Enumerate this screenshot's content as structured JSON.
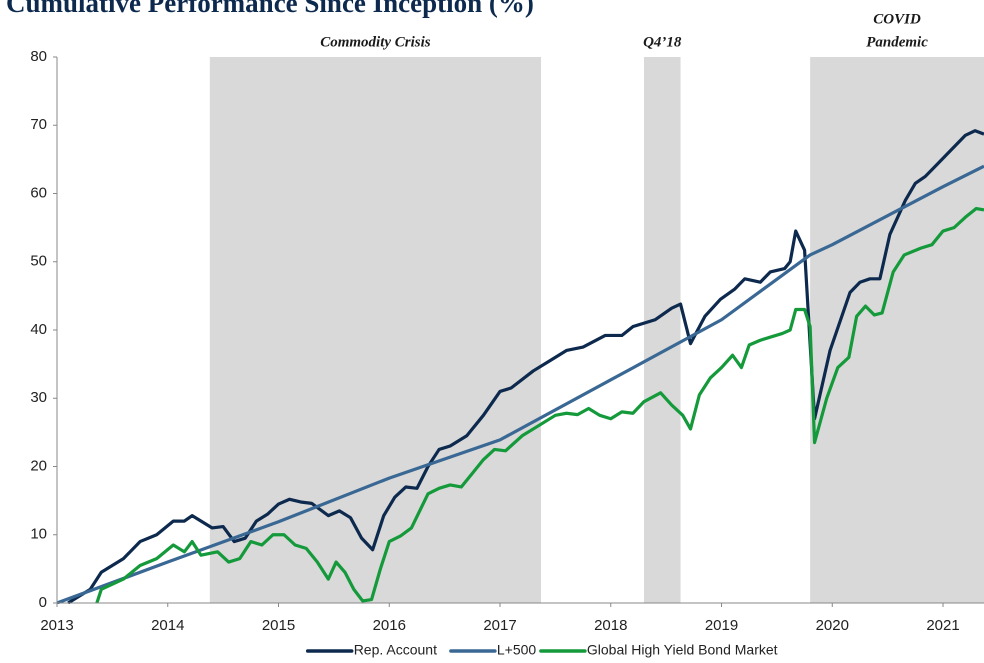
{
  "chart_data": {
    "type": "line",
    "title": "Cumulative Performance Since Inception (%)",
    "xlim": [
      2013,
      2021.37
    ],
    "xticks": [
      2013,
      2014,
      2015,
      2016,
      2017,
      2018,
      2019,
      2020,
      2021
    ],
    "ylim": [
      0,
      80
    ],
    "yticks": [
      0,
      10,
      20,
      30,
      40,
      50,
      60,
      70,
      80
    ],
    "grid": false,
    "legend": "bottom",
    "shaded_regions": [
      {
        "label": [
          "Commodity Crisis"
        ],
        "start": 2014.38,
        "end": 2017.37,
        "color": "#d9d9d9"
      },
      {
        "label": [
          "Q4’18"
        ],
        "start": 2018.3,
        "end": 2018.63,
        "color": "#d9d9d9"
      },
      {
        "label": [
          "COVID",
          "Pandemic"
        ],
        "start": 2019.8,
        "end": 2021.37,
        "color": "#d9d9d9"
      }
    ],
    "series": [
      {
        "name": "Rep. Account",
        "color": "#0d2a4e",
        "x": [
          2013.1,
          2013.3,
          2013.4,
          2013.6,
          2013.75,
          2013.9,
          2014.05,
          2014.15,
          2014.22,
          2014.4,
          2014.5,
          2014.6,
          2014.7,
          2014.8,
          2014.9,
          2015.0,
          2015.1,
          2015.2,
          2015.3,
          2015.45,
          2015.55,
          2015.65,
          2015.75,
          2015.85,
          2015.95,
          2016.05,
          2016.15,
          2016.25,
          2016.35,
          2016.45,
          2016.55,
          2016.7,
          2016.85,
          2017.0,
          2017.1,
          2017.3,
          2017.45,
          2017.6,
          2017.75,
          2017.95,
          2018.1,
          2018.2,
          2018.4,
          2018.55,
          2018.63,
          2018.72,
          2018.85,
          2018.99,
          2019.12,
          2019.21,
          2019.35,
          2019.44,
          2019.57,
          2019.62,
          2019.67,
          2019.75,
          2019.84,
          2019.98,
          2020.16,
          2020.25,
          2020.34,
          2020.43,
          2020.52,
          2020.66,
          2020.75,
          2020.84,
          2020.93,
          2021.02,
          2021.11,
          2021.2,
          2021.29,
          2021.37
        ],
        "values": [
          0,
          2,
          4.5,
          6.5,
          9,
          10,
          12,
          12,
          12.8,
          11,
          11.2,
          9,
          9.5,
          12,
          13,
          14.5,
          15.2,
          14.8,
          14.6,
          12.8,
          13.5,
          12.5,
          9.5,
          7.8,
          12.8,
          15.5,
          17,
          16.8,
          20,
          22.5,
          23,
          24.5,
          27.5,
          31,
          31.5,
          34,
          35.5,
          37,
          37.5,
          39.2,
          39.2,
          40.5,
          41.5,
          43.2,
          43.8,
          38,
          42,
          44.5,
          46,
          47.5,
          47,
          48.5,
          49,
          50,
          54.5,
          51.7,
          27,
          37,
          45.5,
          47,
          47.5,
          47.5,
          54,
          59,
          61.5,
          62.5,
          64,
          65.5,
          67,
          68.5,
          69.2,
          68.7
        ]
      },
      {
        "name": "L+500",
        "color": "#3a6894",
        "x": [
          2013,
          2014,
          2015,
          2016,
          2017,
          2018,
          2019,
          2019.8,
          2020,
          2021,
          2021.37
        ],
        "values": [
          0,
          6,
          11.9,
          18.3,
          23.9,
          32.7,
          41.5,
          51,
          52.5,
          61,
          64
        ]
      },
      {
        "name": "Global High Yield Bond Market",
        "color": "#149a3a",
        "x": [
          2013.36,
          2013.4,
          2013.6,
          2013.75,
          2013.9,
          2014.05,
          2014.15,
          2014.22,
          2014.3,
          2014.45,
          2014.55,
          2014.65,
          2014.75,
          2014.85,
          2014.95,
          2015.05,
          2015.15,
          2015.25,
          2015.35,
          2015.45,
          2015.52,
          2015.6,
          2015.68,
          2015.76,
          2015.84,
          2015.92,
          2016.0,
          2016.1,
          2016.2,
          2016.35,
          2016.45,
          2016.55,
          2016.65,
          2016.75,
          2016.85,
          2016.95,
          2017.05,
          2017.2,
          2017.35,
          2017.5,
          2017.6,
          2017.7,
          2017.8,
          2017.9,
          2018.0,
          2018.1,
          2018.2,
          2018.3,
          2018.45,
          2018.55,
          2018.65,
          2018.72,
          2018.8,
          2018.9,
          2019.0,
          2019.1,
          2019.18,
          2019.25,
          2019.35,
          2019.45,
          2019.55,
          2019.62,
          2019.67,
          2019.75,
          2019.8,
          2019.84,
          2019.95,
          2020.05,
          2020.15,
          2020.22,
          2020.3,
          2020.38,
          2020.45,
          2020.55,
          2020.65,
          2020.8,
          2020.9,
          2021.0,
          2021.1,
          2021.2,
          2021.3,
          2021.37
        ],
        "values": [
          0,
          2,
          3.5,
          5.5,
          6.5,
          8.5,
          7.5,
          9,
          7,
          7.5,
          6,
          6.5,
          9,
          8.5,
          10,
          10,
          8.5,
          8,
          6,
          3.5,
          6,
          4.5,
          2,
          0.3,
          0.5,
          5,
          9,
          9.8,
          11,
          16,
          16.8,
          17.3,
          17,
          19,
          21,
          22.5,
          22.3,
          24.5,
          26,
          27.5,
          27.8,
          27.6,
          28.5,
          27.5,
          27,
          28,
          27.8,
          29.5,
          30.8,
          29,
          27.5,
          25.5,
          30.5,
          33,
          34.5,
          36.3,
          34.5,
          37.8,
          38.5,
          39,
          39.5,
          40,
          43,
          43,
          40.5,
          23.5,
          30,
          34.5,
          36,
          42,
          43.5,
          42.2,
          42.5,
          48.5,
          51,
          52,
          52.5,
          54.5,
          55,
          56.5,
          57.8,
          57.6
        ]
      }
    ]
  }
}
